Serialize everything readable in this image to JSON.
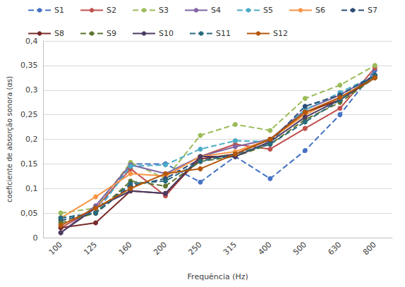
{
  "chart_data": {
    "type": "line",
    "x_label": "Frequência (Hz)",
    "y_label": "coeficiente de absorção sonora (αs)",
    "categories": [
      "100",
      "125",
      "160",
      "200",
      "250",
      "315",
      "400",
      "500",
      "630",
      "800"
    ],
    "ylim": [
      0,
      0.4
    ],
    "yticks": [
      0,
      {
        "value": 0.05,
        "label": "0,05"
      },
      {
        "value": 0.1,
        "label": "0,1"
      },
      {
        "value": 0.15,
        "label": "0,15"
      },
      {
        "value": 0.2,
        "label": "0,2"
      },
      {
        "value": 0.25,
        "label": "0,25"
      },
      {
        "value": 0.3,
        "label": "0,3"
      },
      {
        "value": 0.35,
        "label": "0,35"
      },
      {
        "value": 0.4,
        "label": "0,4"
      }
    ],
    "grid": true,
    "legend": "top",
    "marker": "circle",
    "series": [
      {
        "name": "S1",
        "color": "#4472c4",
        "line_style": "dashed",
        "values": [
          0.04,
          0.05,
          0.15,
          0.15,
          0.113,
          0.165,
          0.12,
          0.177,
          0.25,
          0.34
        ]
      },
      {
        "name": "S2",
        "color": "#c0504d",
        "line_style": "solid",
        "values": [
          0.02,
          0.06,
          0.14,
          0.085,
          0.165,
          0.19,
          0.18,
          0.222,
          0.263,
          0.345
        ]
      },
      {
        "name": "S3",
        "color": "#9bbb59",
        "line_style": "dashed",
        "values": [
          0.05,
          0.06,
          0.153,
          0.12,
          0.208,
          0.23,
          0.218,
          0.283,
          0.31,
          0.35
        ]
      },
      {
        "name": "S4",
        "color": "#8064a2",
        "line_style": "solid",
        "values": [
          0.01,
          0.065,
          0.148,
          0.13,
          0.165,
          0.185,
          0.2,
          0.26,
          0.29,
          0.33
        ]
      },
      {
        "name": "S5",
        "color": "#4bacc6",
        "line_style": "dashed",
        "values": [
          0.04,
          0.05,
          0.145,
          0.148,
          0.18,
          0.197,
          0.195,
          0.26,
          0.295,
          0.33
        ]
      },
      {
        "name": "S6",
        "color": "#f79646",
        "line_style": "solid",
        "values": [
          0.04,
          0.083,
          0.13,
          0.125,
          0.165,
          0.175,
          0.2,
          0.25,
          0.285,
          0.325
        ]
      },
      {
        "name": "S7",
        "color": "#2c4d75",
        "line_style": "dashed",
        "values": [
          0.035,
          0.05,
          0.105,
          0.12,
          0.16,
          0.165,
          0.195,
          0.267,
          0.29,
          0.33
        ]
      },
      {
        "name": "S8",
        "color": "#772c2a",
        "line_style": "solid",
        "values": [
          0.02,
          0.03,
          0.095,
          0.09,
          0.16,
          0.17,
          0.2,
          0.255,
          0.28,
          0.325
        ]
      },
      {
        "name": "S9",
        "color": "#5f7530",
        "line_style": "dashed",
        "values": [
          0.03,
          0.05,
          0.115,
          0.105,
          0.155,
          0.165,
          0.19,
          0.24,
          0.275,
          0.325
        ]
      },
      {
        "name": "S10",
        "color": "#4d3b62",
        "line_style": "solid",
        "values": [
          0.01,
          0.06,
          0.095,
          0.09,
          0.165,
          0.165,
          0.195,
          0.245,
          0.28,
          0.33
        ]
      },
      {
        "name": "S11",
        "color": "#276a7c",
        "line_style": "dashed",
        "values": [
          0.04,
          0.05,
          0.11,
          0.115,
          0.155,
          0.17,
          0.19,
          0.235,
          0.28,
          0.33
        ]
      },
      {
        "name": "S12",
        "color": "#b65708",
        "line_style": "solid",
        "values": [
          0.025,
          0.06,
          0.1,
          0.13,
          0.14,
          0.17,
          0.2,
          0.255,
          0.285,
          0.325
        ]
      }
    ]
  }
}
